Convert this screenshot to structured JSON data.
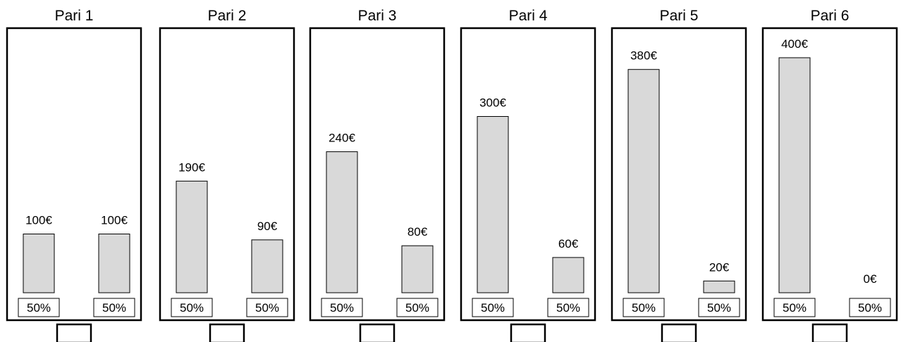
{
  "chart_data": [
    {
      "type": "bar",
      "title": "Pari 1",
      "categories": [
        "",
        ""
      ],
      "values": [
        100,
        100
      ],
      "value_labels": [
        "100€",
        "100€"
      ],
      "percent_labels": [
        "50%",
        "50%"
      ]
    },
    {
      "type": "bar",
      "title": "Pari 2",
      "categories": [
        "",
        ""
      ],
      "values": [
        190,
        90
      ],
      "value_labels": [
        "190€",
        "90€"
      ],
      "percent_labels": [
        "50%",
        "50%"
      ]
    },
    {
      "type": "bar",
      "title": "Pari 3",
      "categories": [
        "",
        ""
      ],
      "values": [
        240,
        80
      ],
      "value_labels": [
        "240€",
        "80€"
      ],
      "percent_labels": [
        "50%",
        "50%"
      ]
    },
    {
      "type": "bar",
      "title": "Pari 4",
      "categories": [
        "",
        ""
      ],
      "values": [
        300,
        60
      ],
      "value_labels": [
        "300€",
        "60€"
      ],
      "percent_labels": [
        "50%",
        "50%"
      ]
    },
    {
      "type": "bar",
      "title": "Pari 5",
      "categories": [
        "",
        ""
      ],
      "values": [
        380,
        20
      ],
      "value_labels": [
        "380€",
        "20€"
      ],
      "percent_labels": [
        "50%",
        "50%"
      ]
    },
    {
      "type": "bar",
      "title": "Pari 6",
      "categories": [
        "",
        ""
      ],
      "values": [
        400,
        0
      ],
      "value_labels": [
        "400€",
        "0€"
      ],
      "percent_labels": [
        "50%",
        "50%"
      ]
    }
  ],
  "colors": {
    "bar_fill": "#d9d9d9",
    "frame": "#000000"
  }
}
